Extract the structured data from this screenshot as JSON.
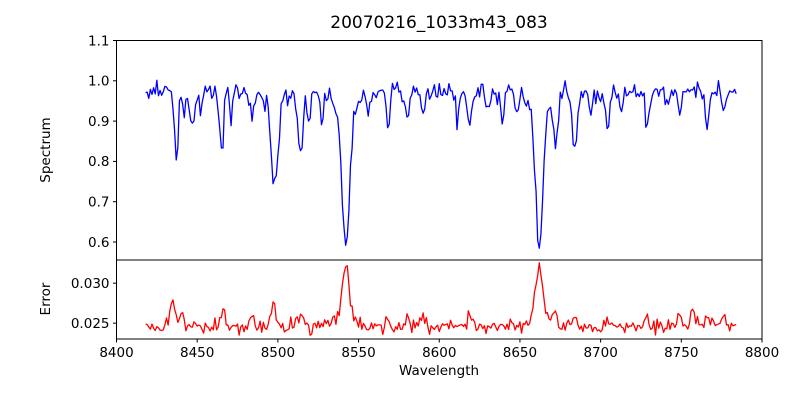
{
  "figure": {
    "background": "#ffffff",
    "frame_color": "#000000",
    "text_color": "#000000"
  },
  "title": "20070216_1033m43_083",
  "xlabel": "Wavelength",
  "top_axes": {
    "ylabel": "Spectrum",
    "ytick_labels": [
      "1.1",
      "1.0",
      "0.9",
      "0.8",
      "0.7",
      "0.6"
    ],
    "ytick_values": [
      1.1,
      1.0,
      0.9,
      0.8,
      0.7,
      0.6
    ]
  },
  "bottom_axes": {
    "ylabel": "Error",
    "ytick_labels": [
      "0.030",
      "0.025"
    ],
    "ytick_values": [
      0.03,
      0.025
    ],
    "xtick_labels": [
      "8400",
      "8450",
      "8500",
      "8550",
      "8600",
      "8650",
      "8700",
      "8750",
      "8800"
    ],
    "xtick_values": [
      8400,
      8450,
      8500,
      8550,
      8600,
      8650,
      8700,
      8750,
      8800
    ]
  },
  "chart_data": [
    {
      "type": "line",
      "name": "spectrum",
      "color": "#0000ff",
      "title": "20070216_1033m43_083",
      "xlabel": "",
      "ylabel": "Spectrum",
      "xlim": [
        8400,
        8800
      ],
      "ylim": [
        0.5553,
        1.1
      ],
      "x_range": [
        8418,
        8784
      ],
      "x_step": 1,
      "baseline": 0.975,
      "noise_sigma": 0.013,
      "grid": false,
      "legend": false,
      "features_comment": "absorption lines: [center_wavelength, amplitude(negative=dip), sigma_angstrom, wing_fraction]; deep dips are the Ca II triplet 8498/8542/8662",
      "features": [
        [
          8437,
          -0.18,
          1.2,
          0
        ],
        [
          8442,
          -0.06,
          1.0,
          0
        ],
        [
          8447,
          -0.1,
          1.2,
          0
        ],
        [
          8452,
          -0.05,
          1.0,
          0
        ],
        [
          8465,
          -0.145,
          1.3,
          0
        ],
        [
          8471,
          -0.06,
          1.0,
          0
        ],
        [
          8484,
          -0.065,
          1.1,
          0
        ],
        [
          8498,
          -0.205,
          2.0,
          0.15
        ],
        [
          8514,
          -0.15,
          1.6,
          0
        ],
        [
          8519,
          -0.08,
          1.1,
          0
        ],
        [
          8527,
          -0.07,
          1.1,
          0
        ],
        [
          8542,
          -0.34,
          2.3,
          0.15
        ],
        [
          8556,
          -0.05,
          1.0,
          0
        ],
        [
          8568,
          -0.09,
          1.2,
          0
        ],
        [
          8580,
          -0.08,
          1.2,
          0
        ],
        [
          8590,
          -0.06,
          1.1,
          0
        ],
        [
          8611,
          -0.07,
          1.1,
          0
        ],
        [
          8619,
          -0.085,
          1.2,
          0
        ],
        [
          8630,
          -0.05,
          1.0,
          0
        ],
        [
          8639,
          -0.07,
          1.1,
          0
        ],
        [
          8648,
          -0.06,
          1.0,
          0
        ],
        [
          8662,
          -0.335,
          2.2,
          0.15
        ],
        [
          8672,
          -0.125,
          1.2,
          0
        ],
        [
          8684,
          -0.15,
          1.4,
          0
        ],
        [
          8694,
          -0.06,
          1.0,
          0
        ],
        [
          8704,
          -0.1,
          1.2,
          0
        ],
        [
          8713,
          -0.06,
          1.0,
          0
        ],
        [
          8729,
          -0.09,
          1.2,
          0
        ],
        [
          8742,
          -0.06,
          1.0,
          0
        ],
        [
          8749,
          -0.085,
          1.2,
          0
        ],
        [
          8766,
          -0.085,
          1.2,
          0
        ],
        [
          8776,
          -0.065,
          1.1,
          0
        ]
      ]
    },
    {
      "type": "line",
      "name": "error",
      "color": "#ff0000",
      "xlabel": "Wavelength",
      "ylabel": "Error",
      "xlim": [
        8400,
        8800
      ],
      "ylim": [
        0.02302,
        0.0329
      ],
      "x_range": [
        8418,
        8784
      ],
      "x_step": 1,
      "baseline": 0.0246,
      "noise_sigma": 0.00045,
      "grid": false,
      "legend": false,
      "features_comment": "error spikes coincide with the strong absorption lines",
      "features": [
        [
          8435,
          0.0032,
          1.4,
          0
        ],
        [
          8441,
          0.0015,
          1.2,
          0
        ],
        [
          8466,
          0.0025,
          1.4,
          0
        ],
        [
          8484,
          0.0013,
          1.2,
          0
        ],
        [
          8497,
          0.003,
          1.6,
          0
        ],
        [
          8514,
          0.0019,
          1.5,
          0
        ],
        [
          8542,
          0.0067,
          2.0,
          0.18
        ],
        [
          8568,
          0.001,
          1.2,
          0
        ],
        [
          8580,
          0.0011,
          1.2,
          0
        ],
        [
          8590,
          0.0013,
          1.4,
          0
        ],
        [
          8619,
          0.0011,
          1.2,
          0
        ],
        [
          8662,
          0.0064,
          2.0,
          0.18
        ],
        [
          8672,
          0.0012,
          1.2,
          0
        ],
        [
          8684,
          0.0014,
          1.4,
          0
        ],
        [
          8704,
          0.0011,
          1.2,
          0
        ],
        [
          8729,
          0.0011,
          1.2,
          0
        ],
        [
          8749,
          0.0013,
          1.2,
          0
        ],
        [
          8757,
          0.0015,
          1.2,
          0
        ],
        [
          8766,
          0.0017,
          1.2,
          0
        ],
        [
          8776,
          0.0016,
          1.2,
          0
        ]
      ]
    }
  ]
}
